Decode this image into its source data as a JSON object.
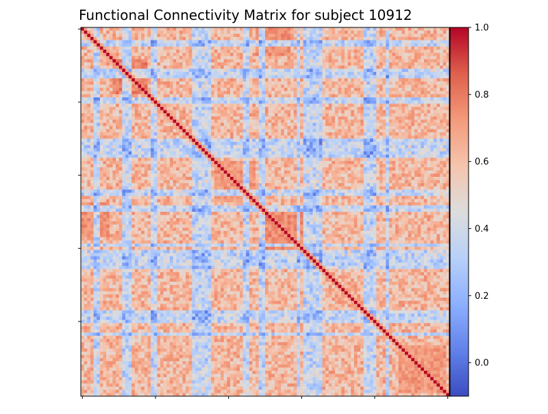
{
  "chart_data": {
    "type": "heatmap",
    "title": "Functional Connectivity Matrix for subject 10912",
    "xlabel": "",
    "ylabel": "",
    "n_nodes": 116,
    "symmetric": true,
    "diagonal_value": 1.0,
    "colormap": "coolwarm",
    "value_range": [
      -0.1,
      1.0
    ],
    "colorbar": {
      "ticks": [
        0.0,
        0.2,
        0.4,
        0.6,
        0.8,
        1.0
      ],
      "tick_labels": [
        "0.0",
        "0.2",
        "0.4",
        "0.6",
        "0.8",
        "1.0"
      ],
      "placement": "right"
    },
    "x_ticks": [
      0,
      23,
      46,
      69,
      92,
      115
    ],
    "y_ticks": [
      0,
      23,
      46,
      69,
      92
    ],
    "x_tick_labels_visible": false,
    "y_tick_labels_visible": false,
    "base_correlation": 0.62,
    "weak_nodes": [
      4,
      5,
      13,
      14,
      15,
      22,
      23,
      35,
      36,
      37,
      38,
      39,
      40,
      51,
      52,
      56,
      57,
      68,
      70,
      71,
      72,
      73,
      74,
      75,
      89,
      90,
      91,
      92,
      96
    ],
    "strong_blocks": [
      {
        "rows": [
          10,
          20
        ],
        "cols": [
          10,
          20
        ],
        "value": 0.78
      },
      {
        "rows": [
          58,
          72
        ],
        "cols": [
          58,
          72
        ],
        "value": 0.76
      },
      {
        "rows": [
          42,
          54
        ],
        "cols": [
          42,
          54
        ],
        "value": 0.72
      },
      {
        "rows": [
          100,
          114
        ],
        "cols": [
          100,
          114
        ],
        "value": 0.72
      },
      {
        "rows": [
          0,
          8
        ],
        "cols": [
          55,
          65
        ],
        "value": 0.74
      },
      {
        "rows": [
          55,
          65
        ],
        "cols": [
          0,
          8
        ],
        "value": 0.74
      }
    ],
    "colors": {
      "low": "#3b4cc0",
      "mid": "#dddddd",
      "high": "#b40426"
    }
  }
}
